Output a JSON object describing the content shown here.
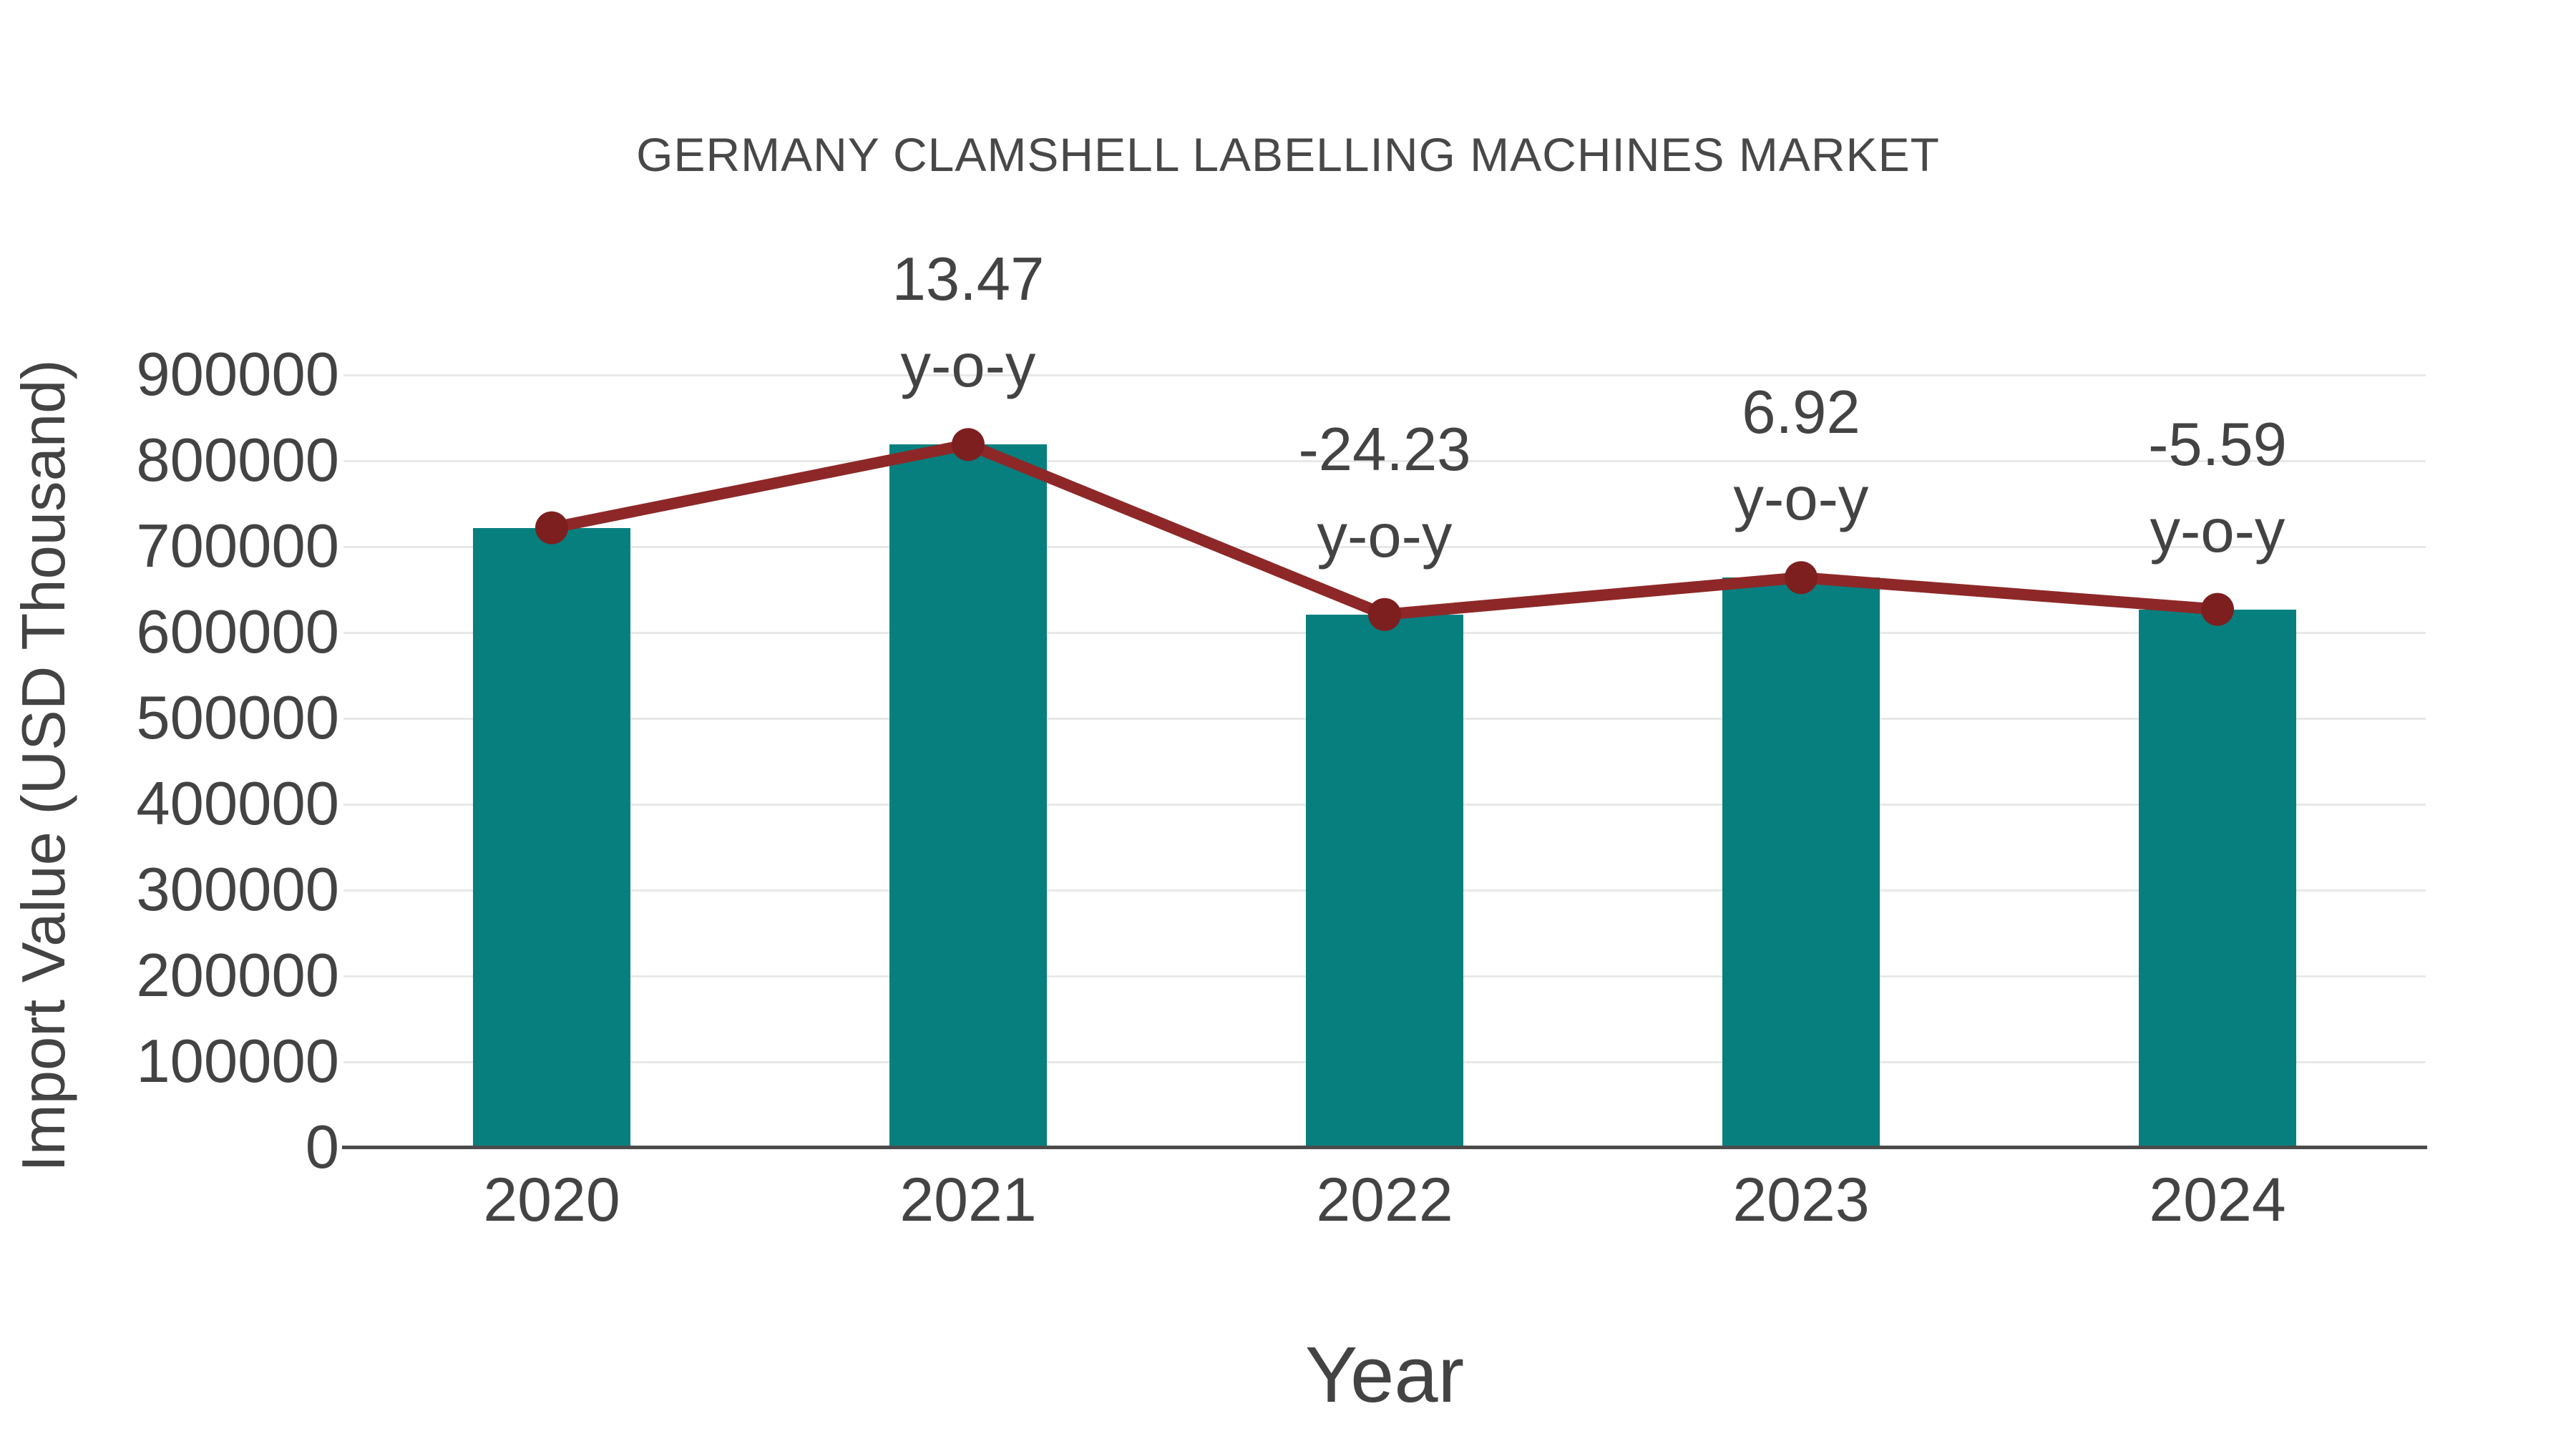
{
  "chart_data": {
    "type": "bar",
    "subtype": "bar-with-line-markers",
    "title": "GERMANY CLAMSHELL LABELLING MACHINES MARKET",
    "xlabel": "Year",
    "ylabel": "Import Value (USD Thousand)",
    "categories": [
      "2020",
      "2021",
      "2022",
      "2023",
      "2024"
    ],
    "series": [
      {
        "name": "Import Value (USD Thousand)",
        "type": "bar",
        "values": [
          722000,
          819000,
          621000,
          664000,
          627000
        ]
      },
      {
        "name": "Import Value (USD Thousand)",
        "type": "line+markers",
        "values": [
          722000,
          819000,
          621000,
          664000,
          627000
        ]
      }
    ],
    "annotations": [
      {
        "category": "2021",
        "yoy_percent": 13.47,
        "value_label": "13.47",
        "suffix_label": "y-o-y"
      },
      {
        "category": "2022",
        "yoy_percent": -24.23,
        "value_label": "-24.23",
        "suffix_label": "y-o-y"
      },
      {
        "category": "2023",
        "yoy_percent": 6.92,
        "value_label": "6.92",
        "suffix_label": "y-o-y"
      },
      {
        "category": "2024",
        "yoy_percent": -5.59,
        "value_label": "-5.59",
        "suffix_label": "y-o-y"
      }
    ],
    "ylim": [
      0,
      900000
    ],
    "ytick_step": 100000,
    "grid": "horizontal",
    "legend": "none",
    "colors": {
      "bar": "#077f7f",
      "line": "#8e2828",
      "marker": "#7e1f1f",
      "grid": "#e8e8e8",
      "axis": "#4b4b4b",
      "text": "#434343",
      "title": "#484848"
    }
  }
}
